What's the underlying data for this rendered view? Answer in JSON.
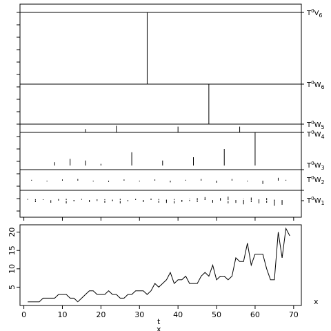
{
  "chart_data": [
    {
      "type": "line",
      "panel": "series",
      "x": [
        1,
        2,
        3,
        4,
        5,
        6,
        7,
        8,
        9,
        10,
        11,
        12,
        13,
        14,
        15,
        16,
        17,
        18,
        19,
        20,
        21,
        22,
        23,
        24,
        25,
        26,
        27,
        28,
        29,
        30,
        31,
        32,
        33,
        34,
        35,
        36,
        37,
        38,
        39,
        40,
        41,
        42,
        43,
        44,
        45,
        46,
        47,
        48,
        49,
        50,
        51,
        52,
        53,
        54,
        55,
        56,
        57,
        58,
        59,
        60,
        61,
        62,
        63,
        64,
        65,
        66,
        67,
        68,
        69
      ],
      "values": [
        1,
        1,
        1,
        1,
        2,
        2,
        2,
        2,
        3,
        3,
        3,
        2,
        2,
        1,
        2,
        3,
        4,
        4,
        3,
        3,
        3,
        4,
        3,
        3,
        2,
        2,
        3,
        3,
        4,
        4,
        4,
        3,
        4,
        6,
        5,
        6,
        7,
        9,
        6,
        7,
        7,
        8,
        6,
        6,
        6,
        8,
        9,
        8,
        11,
        7,
        8,
        8,
        7,
        8,
        13,
        12,
        12,
        17,
        11,
        14,
        14,
        14,
        10,
        7,
        7,
        20,
        13,
        21,
        19
      ],
      "xlabel": "t",
      "xlabel2": "x",
      "side_label": "x",
      "xticks": [
        0,
        10,
        20,
        30,
        40,
        50,
        60,
        70
      ],
      "yticks": [
        5,
        10,
        15,
        20
      ],
      "xlim": [
        -1,
        72
      ],
      "ylim": [
        0,
        22
      ],
      "grid": false
    },
    {
      "type": "bar",
      "panel": "decomposition",
      "bands": [
        {
          "label": {
            "a": "T",
            "b": "0",
            "c": "V",
            "d": "6"
          },
          "scale": 0.55,
          "spikes": [
            [
              32,
              1
            ]
          ]
        },
        {
          "label": {
            "a": "T",
            "b": "0",
            "c": "W",
            "d": "6"
          },
          "scale": 0.65,
          "spikes": [
            [
              48,
              1
            ]
          ]
        },
        {
          "label": {
            "a": "T",
            "b": "0",
            "c": "W",
            "d": "5"
          },
          "scale": 0.6,
          "spikes": [
            [
              16,
              0.4
            ],
            [
              24,
              0.8
            ],
            [
              40,
              0.7
            ],
            [
              56,
              0.7
            ]
          ]
        },
        {
          "label": {
            "a": "T",
            "b": "0",
            "c": "W",
            "d": "4"
          },
          "scale": 1.6,
          "spikes": [
            [
              8,
              0.1
            ],
            [
              12,
              0.2
            ],
            [
              16,
              0.15
            ],
            [
              20,
              0.05
            ],
            [
              28,
              0.4
            ],
            [
              36,
              0.15
            ],
            [
              44,
              0.25
            ],
            [
              52,
              0.5
            ],
            [
              60,
              1
            ]
          ]
        },
        {
          "label": {
            "a": "T",
            "b": "0",
            "c": "W",
            "d": "3"
          },
          "scale": 1.5,
          "spikes": [
            [
              2,
              0.1
            ],
            [
              6,
              -0.1
            ],
            [
              10,
              0.15
            ],
            [
              14,
              0.2
            ],
            [
              18,
              -0.1
            ],
            [
              22,
              -0.15
            ],
            [
              26,
              0.15
            ],
            [
              30,
              -0.1
            ],
            [
              34,
              0.15
            ],
            [
              38,
              -0.2
            ],
            [
              42,
              0.1
            ],
            [
              46,
              0.2
            ],
            [
              50,
              -0.25
            ],
            [
              54,
              0.2
            ],
            [
              58,
              -0.1
            ],
            [
              62,
              -0.4
            ],
            [
              66,
              0.35
            ],
            [
              68,
              0.1
            ]
          ]
        },
        {
          "label": {
            "a": "T",
            "b": "0",
            "c": "W",
            "d": "2"
          },
          "scale": 1.0,
          "spikes": [
            [
              1,
              0.05
            ],
            [
              3,
              0.08
            ],
            [
              5,
              0.06
            ],
            [
              7,
              -0.05
            ],
            [
              9,
              0.1
            ],
            [
              11,
              0.12
            ],
            [
              13,
              -0.1
            ],
            [
              15,
              0.05
            ],
            [
              17,
              -0.15
            ],
            [
              19,
              -0.1
            ],
            [
              21,
              0.08
            ],
            [
              23,
              -0.12
            ],
            [
              25,
              0.12
            ],
            [
              27,
              -0.1
            ],
            [
              29,
              0.1
            ],
            [
              31,
              -0.15
            ],
            [
              33,
              0.15
            ],
            [
              35,
              0.1
            ],
            [
              37,
              -0.3
            ],
            [
              39,
              0.1
            ],
            [
              41,
              -0.2
            ],
            [
              43,
              -0.1
            ],
            [
              45,
              0.2
            ],
            [
              47,
              0.3
            ],
            [
              49,
              -0.2
            ],
            [
              51,
              0.2
            ],
            [
              53,
              0.35
            ],
            [
              55,
              -0.3
            ],
            [
              57,
              -0.45
            ],
            [
              59,
              0.25
            ],
            [
              61,
              -0.35
            ],
            [
              63,
              0.2
            ],
            [
              65,
              -0.6
            ],
            [
              67,
              -0.5
            ]
          ]
        },
        {
          "label": {
            "a": "T",
            "b": "0",
            "c": "W",
            "d": "1"
          },
          "scale": 1.0,
          "spikes": []
        }
      ]
    }
  ]
}
